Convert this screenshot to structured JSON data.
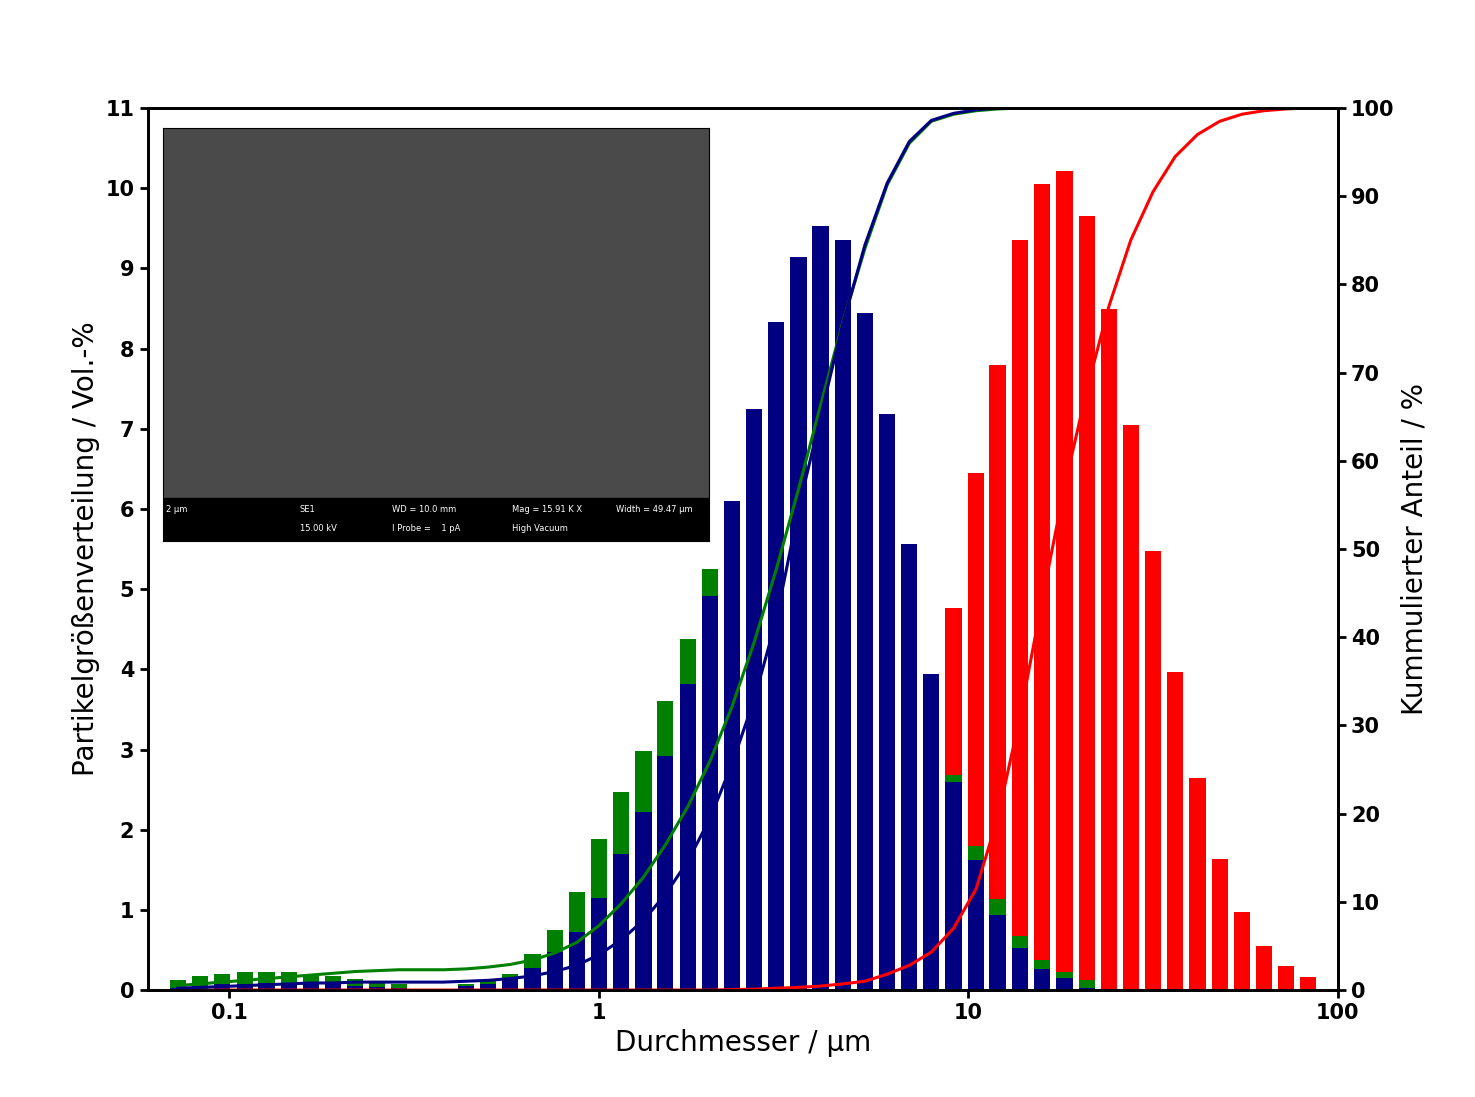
{
  "chart_data": {
    "type": "bar",
    "x_label": "Durchmesser / µm",
    "y_label": "Partikelgrößenverteilung / Vol.-%",
    "y2_label": "Kummulierter Anteil / %",
    "log": "x",
    "grid": false,
    "xlim": [
      0.06,
      100
    ],
    "xticks": [
      0.1,
      1,
      10,
      100
    ],
    "ylim": [
      0,
      11
    ],
    "yticks": [
      0,
      1,
      2,
      3,
      4,
      5,
      6,
      7,
      8,
      9,
      10,
      11
    ],
    "y2lim": [
      0,
      100
    ],
    "y2ticks": [
      0,
      10,
      20,
      30,
      40,
      50,
      60,
      70,
      80,
      90,
      100
    ],
    "x": [
      0.0724,
      0.0832,
      0.0955,
      0.11,
      0.126,
      0.145,
      0.166,
      0.191,
      0.219,
      0.251,
      0.288,
      0.331,
      0.38,
      0.437,
      0.501,
      0.575,
      0.661,
      0.759,
      0.871,
      1.0,
      1.15,
      1.32,
      1.51,
      1.74,
      2.0,
      2.29,
      2.63,
      3.02,
      3.47,
      3.98,
      4.57,
      5.25,
      6.03,
      6.92,
      7.94,
      9.12,
      10.5,
      12.0,
      13.8,
      15.8,
      18.2,
      20.9,
      24.0,
      27.5,
      31.6,
      36.3,
      41.7,
      47.9,
      55.0,
      63.1,
      72.4,
      83.2
    ],
    "series": [
      {
        "type": "bar",
        "color": "#ff0000",
        "values": [
          null,
          null,
          null,
          null,
          null,
          null,
          null,
          null,
          null,
          null,
          null,
          null,
          null,
          null,
          null,
          null,
          null,
          null,
          null,
          null,
          null,
          null,
          null,
          null,
          null,
          null,
          null,
          null,
          null,
          null,
          null,
          null,
          null,
          null,
          null,
          4.77,
          6.45,
          7.79,
          9.35,
          10.05,
          10.22,
          9.65,
          8.5,
          7.05,
          5.48,
          3.97,
          2.65,
          1.63,
          0.97,
          0.55,
          0.3,
          0.16
        ]
      },
      {
        "type": "bar",
        "color": "#008000",
        "values": [
          0.12,
          0.17,
          0.2,
          0.22,
          0.23,
          0.22,
          0.2,
          0.17,
          0.14,
          0.11,
          0.08,
          null,
          null,
          0.08,
          0.12,
          0.2,
          0.45,
          0.75,
          1.22,
          1.88,
          2.47,
          2.98,
          3.6,
          4.38,
          5.25,
          6.1,
          7.25,
          8.33,
          9.14,
          9.53,
          9.35,
          8.45,
          7.19,
          5.56,
          3.94,
          2.68,
          1.8,
          1.13,
          0.68,
          0.38,
          0.22,
          0.12,
          null,
          null,
          null,
          null,
          null,
          null,
          null,
          null,
          null,
          null
        ]
      },
      {
        "type": "bar",
        "color": "#000080",
        "values": [
          0.02,
          0.05,
          0.07,
          0.08,
          0.09,
          0.09,
          0.08,
          0.07,
          0.05,
          0.04,
          0.03,
          null,
          null,
          0.05,
          0.08,
          0.14,
          0.27,
          0.47,
          0.72,
          1.15,
          1.7,
          2.22,
          2.92,
          3.82,
          4.92,
          6.1,
          7.25,
          8.33,
          9.14,
          9.53,
          9.35,
          8.45,
          7.19,
          5.56,
          3.94,
          2.6,
          1.62,
          0.93,
          0.52,
          0.26,
          0.15,
          0.03,
          null,
          null,
          null,
          null,
          null,
          null,
          null,
          null,
          null,
          null
        ]
      },
      {
        "type": "line",
        "axis": "y2",
        "color": "#ff0000",
        "values": [
          0,
          0,
          0,
          0,
          0,
          0,
          0,
          0,
          0,
          0,
          0,
          0,
          0,
          0,
          0,
          0,
          0,
          0,
          0,
          0,
          0,
          0,
          0,
          0,
          0,
          0.05,
          0.1,
          0.2,
          0.3,
          0.45,
          0.7,
          1.0,
          1.8,
          2.8,
          4.3,
          7.0,
          11.5,
          19.5,
          31,
          44,
          57,
          68,
          77.5,
          85,
          90.5,
          94.5,
          97,
          98.5,
          99.3,
          99.7,
          99.9,
          100
        ]
      },
      {
        "type": "line",
        "axis": "y2",
        "color": "#008000",
        "values": [
          0.5,
          0.7,
          0.9,
          1.1,
          1.3,
          1.5,
          1.7,
          1.9,
          2.1,
          2.2,
          2.3,
          2.3,
          2.3,
          2.4,
          2.6,
          2.9,
          3.4,
          4.2,
          5.4,
          7.3,
          9.8,
          12.8,
          16.4,
          20.8,
          26.0,
          32.1,
          39.4,
          47.7,
          56.8,
          66.3,
          75.7,
          84.1,
          91.3,
          96.0,
          98.5,
          99.3,
          99.7,
          99.9,
          100,
          100,
          100,
          100,
          100,
          100,
          100,
          100,
          100,
          100,
          100,
          100,
          100,
          100
        ]
      },
      {
        "type": "line",
        "axis": "y2",
        "color": "#000080",
        "values": [
          0.2,
          0.3,
          0.4,
          0.5,
          0.6,
          0.7,
          0.8,
          0.8,
          0.9,
          0.9,
          0.9,
          0.9,
          0.9,
          1.0,
          1.1,
          1.3,
          1.6,
          2.1,
          2.8,
          4.0,
          5.7,
          7.9,
          10.8,
          14.6,
          19.5,
          25.6,
          32.9,
          42.0,
          54.5,
          65.0,
          75.5,
          84.5,
          91.5,
          96.2,
          98.6,
          99.4,
          99.8,
          100,
          100,
          100,
          100,
          100,
          100,
          100,
          100,
          100,
          100,
          100,
          100,
          100,
          100,
          100
        ]
      }
    ],
    "annotations": [
      "2 µm",
      "SE1",
      "15.00 kV",
      "WD = 10.0 mm",
      "I Probe =    1 pA",
      "Mag = 15.91 K X",
      "High Vacuum",
      "Width = 49.47 µm"
    ]
  }
}
